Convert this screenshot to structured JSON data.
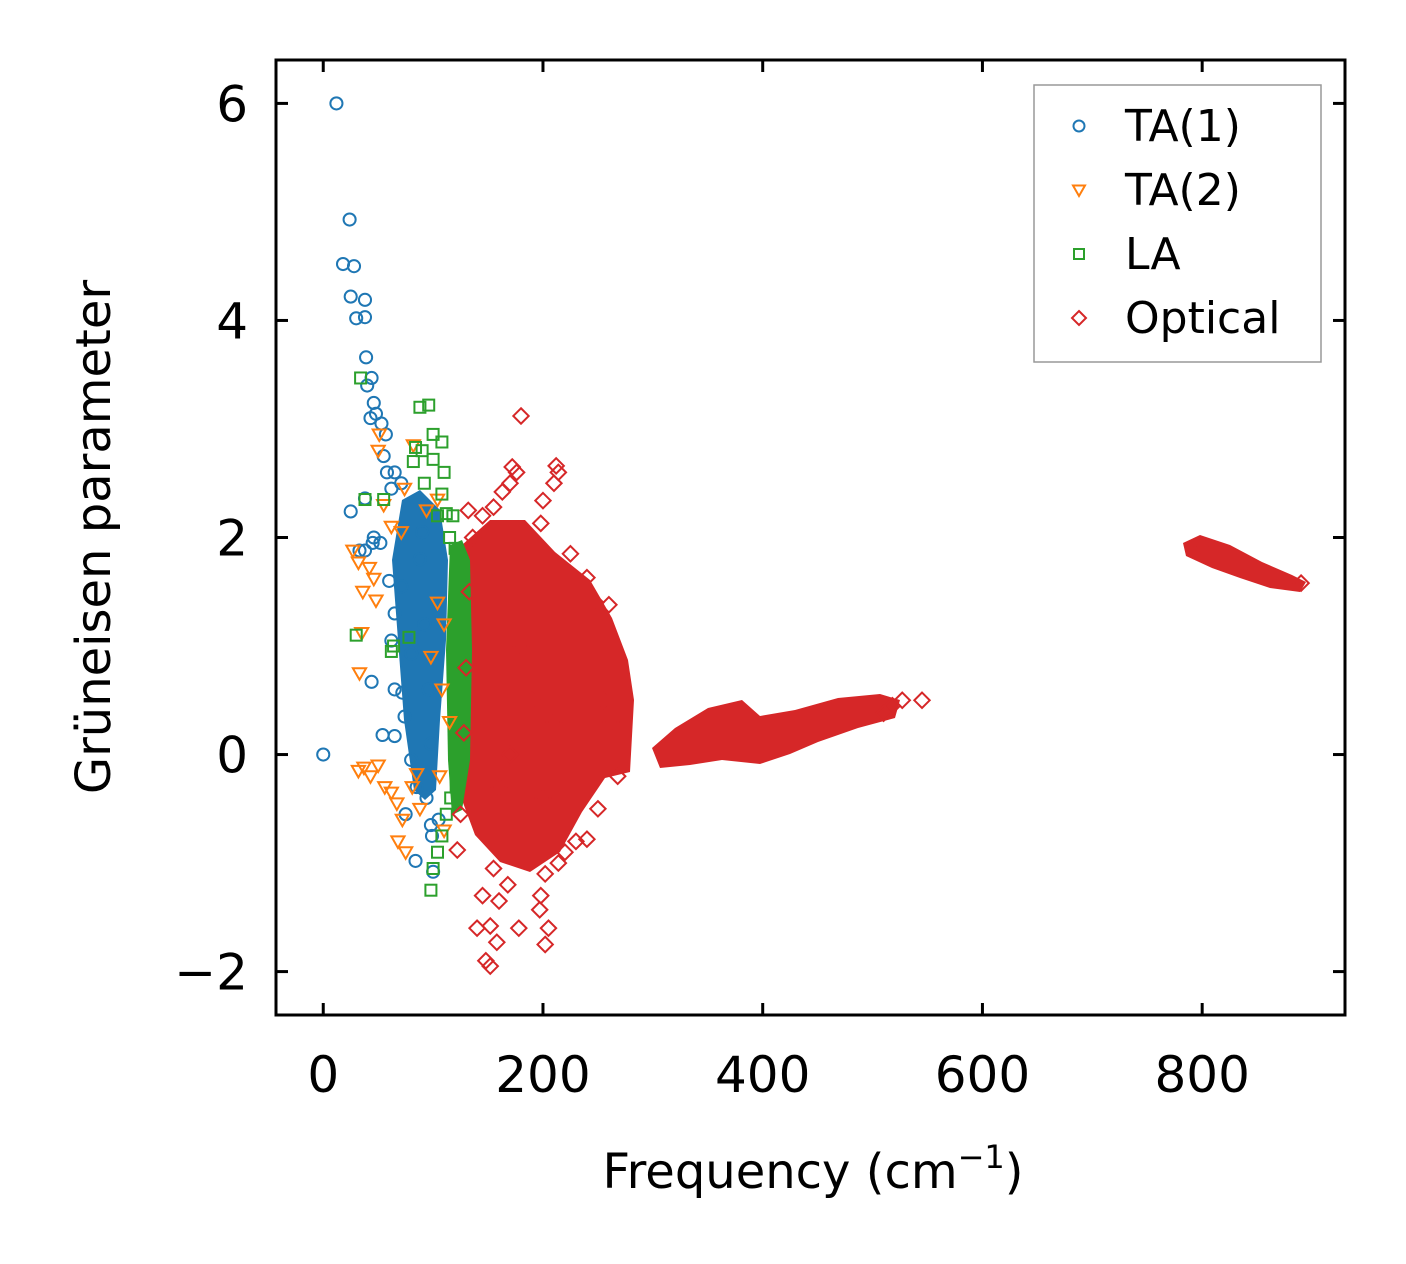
{
  "chart_data": {
    "type": "scatter",
    "title": "",
    "xlabel": "Frequency (cm",
    "xlabel_sup": "−1",
    "xlabel_end": ")",
    "ylabel": "Grüneisen parameter",
    "xlim": [
      -43,
      930
    ],
    "ylim": [
      -2.4,
      6.4
    ],
    "xticks": [
      0,
      200,
      400,
      600,
      800
    ],
    "yticks": [
      -2,
      0,
      2,
      4,
      6
    ],
    "ytick_labels": [
      "−2",
      "0",
      "2",
      "4",
      "6"
    ],
    "grid": false,
    "legend_position": "top-right",
    "series": [
      {
        "name": "TA(1)",
        "marker": "circle",
        "color": "#1f77b4",
        "points": [
          [
            0,
            0
          ],
          [
            12,
            6.0
          ],
          [
            24,
            4.93
          ],
          [
            18,
            4.52
          ],
          [
            28,
            4.5
          ],
          [
            25,
            4.22
          ],
          [
            38,
            4.19
          ],
          [
            30,
            4.02
          ],
          [
            38,
            4.03
          ],
          [
            39,
            3.66
          ],
          [
            44,
            3.47
          ],
          [
            40,
            3.4
          ],
          [
            46,
            3.24
          ],
          [
            48,
            3.14
          ],
          [
            43,
            3.1
          ],
          [
            53,
            3.05
          ],
          [
            57,
            2.95
          ],
          [
            55,
            2.75
          ],
          [
            58,
            2.6
          ],
          [
            65,
            2.6
          ],
          [
            62,
            2.45
          ],
          [
            71,
            2.5
          ],
          [
            25,
            2.24
          ],
          [
            38,
            2.36
          ],
          [
            46,
            2.0
          ],
          [
            38,
            1.88
          ],
          [
            33,
            1.88
          ],
          [
            45,
            1.95
          ],
          [
            52,
            1.95
          ],
          [
            60,
            1.6
          ],
          [
            65,
            1.3
          ],
          [
            71,
            1.55
          ],
          [
            62,
            1.05
          ],
          [
            80,
            0.93
          ],
          [
            44,
            0.67
          ],
          [
            65,
            0.6
          ],
          [
            72,
            0.57
          ],
          [
            74,
            0.35
          ],
          [
            54,
            0.18
          ],
          [
            65,
            0.17
          ],
          [
            80,
            -0.05
          ],
          [
            85,
            -0.3
          ],
          [
            75,
            -0.55
          ],
          [
            94,
            -0.4
          ],
          [
            98,
            -0.65
          ],
          [
            99,
            -0.75
          ],
          [
            105,
            -0.6
          ],
          [
            84,
            -0.98
          ],
          [
            100,
            -1.08
          ],
          [
            88,
            1.8
          ],
          [
            92,
            1.2
          ],
          [
            96,
            0.6
          ],
          [
            90,
            2.05
          ],
          [
            98,
            0.1
          ]
        ]
      },
      {
        "name": "TA(2)",
        "marker": "triangle-down",
        "color": "#ff7f0e",
        "points": [
          [
            27,
            1.88
          ],
          [
            32,
            1.77
          ],
          [
            36,
            1.5
          ],
          [
            42,
            1.72
          ],
          [
            46,
            1.62
          ],
          [
            48,
            1.42
          ],
          [
            35,
            1.12
          ],
          [
            33,
            0.75
          ],
          [
            32,
            -0.15
          ],
          [
            37,
            -0.12
          ],
          [
            43,
            -0.2
          ],
          [
            50,
            -0.1
          ],
          [
            56,
            -0.3
          ],
          [
            62,
            -0.35
          ],
          [
            67,
            -0.45
          ],
          [
            72,
            -0.6
          ],
          [
            75,
            -0.9
          ],
          [
            68,
            -0.8
          ],
          [
            81,
            -0.3
          ],
          [
            85,
            -0.18
          ],
          [
            88,
            -0.5
          ],
          [
            62,
            2.1
          ],
          [
            55,
            2.3
          ],
          [
            50,
            2.8
          ],
          [
            51,
            2.95
          ],
          [
            82,
            2.85
          ],
          [
            94,
            2.25
          ],
          [
            104,
            2.35
          ],
          [
            71,
            2.05
          ],
          [
            74,
            2.45
          ],
          [
            104,
            1.4
          ],
          [
            108,
            0.6
          ],
          [
            110,
            1.2
          ],
          [
            106,
            -0.2
          ],
          [
            110,
            -0.7
          ],
          [
            115,
            0.3
          ],
          [
            98,
            0.9
          ]
        ]
      },
      {
        "name": "LA",
        "marker": "square",
        "color": "#2ca02c",
        "points": [
          [
            30,
            1.1
          ],
          [
            34,
            3.47
          ],
          [
            38,
            2.35
          ],
          [
            55,
            2.35
          ],
          [
            62,
            0.95
          ],
          [
            64,
            1.0
          ],
          [
            78,
            1.08
          ],
          [
            88,
            3.2
          ],
          [
            96,
            3.22
          ],
          [
            100,
            2.95
          ],
          [
            108,
            2.88
          ],
          [
            84,
            2.83
          ],
          [
            90,
            2.8
          ],
          [
            100,
            2.72
          ],
          [
            82,
            2.7
          ],
          [
            92,
            2.5
          ],
          [
            110,
            2.6
          ],
          [
            108,
            2.4
          ],
          [
            104,
            2.2
          ],
          [
            112,
            2.22
          ],
          [
            118,
            2.2
          ],
          [
            115,
            2.0
          ],
          [
            98,
            -1.25
          ],
          [
            100,
            -1.05
          ],
          [
            104,
            -0.9
          ],
          [
            108,
            -0.75
          ],
          [
            112,
            -0.55
          ],
          [
            116,
            -0.4
          ],
          [
            120,
            1.9
          ],
          [
            125,
            1.7
          ],
          [
            128,
            1.2
          ],
          [
            126,
            0.6
          ],
          [
            123,
            0.0
          ],
          [
            121,
            -0.3
          ]
        ]
      },
      {
        "name": "Optical",
        "marker": "diamond",
        "color": "#d62728",
        "points": [
          [
            180,
            3.12
          ],
          [
            172,
            2.65
          ],
          [
            176,
            2.6
          ],
          [
            212,
            2.66
          ],
          [
            214,
            2.6
          ],
          [
            210,
            2.5
          ],
          [
            200,
            2.34
          ],
          [
            170,
            2.5
          ],
          [
            163,
            2.42
          ],
          [
            145,
            2.2
          ],
          [
            132,
            2.25
          ],
          [
            155,
            2.28
          ],
          [
            198,
            2.13
          ],
          [
            225,
            1.85
          ],
          [
            240,
            1.63
          ],
          [
            248,
            1.4
          ],
          [
            260,
            1.38
          ],
          [
            255,
            0.5
          ],
          [
            262,
            0.3
          ],
          [
            268,
            -0.2
          ],
          [
            250,
            -0.5
          ],
          [
            240,
            -0.78
          ],
          [
            230,
            -0.8
          ],
          [
            220,
            -0.9
          ],
          [
            214,
            -1.0
          ],
          [
            202,
            -1.1
          ],
          [
            198,
            -1.3
          ],
          [
            197,
            -1.43
          ],
          [
            205,
            -1.6
          ],
          [
            202,
            -1.75
          ],
          [
            178,
            -1.6
          ],
          [
            168,
            -1.2
          ],
          [
            160,
            -1.35
          ],
          [
            152,
            -1.58
          ],
          [
            158,
            -1.73
          ],
          [
            148,
            -1.9
          ],
          [
            152,
            -1.95
          ],
          [
            140,
            -1.6
          ],
          [
            145,
            -1.3
          ],
          [
            155,
            -1.05
          ],
          [
            122,
            -0.88
          ],
          [
            125,
            -0.55
          ],
          [
            128,
            0.2
          ],
          [
            130,
            0.8
          ],
          [
            133,
            1.5
          ],
          [
            136,
            2.0
          ],
          [
            190,
            0.5
          ],
          [
            180,
            1.0
          ],
          [
            210,
            0.3
          ],
          [
            200,
            -0.4
          ],
          [
            170,
            0.0
          ],
          [
            160,
            -0.3
          ],
          [
            545,
            0.5
          ],
          [
            527,
            0.5
          ],
          [
            518,
            0.45
          ],
          [
            510,
            0.38
          ],
          [
            800,
            1.92
          ],
          [
            890,
            1.58
          ]
        ]
      }
    ]
  }
}
